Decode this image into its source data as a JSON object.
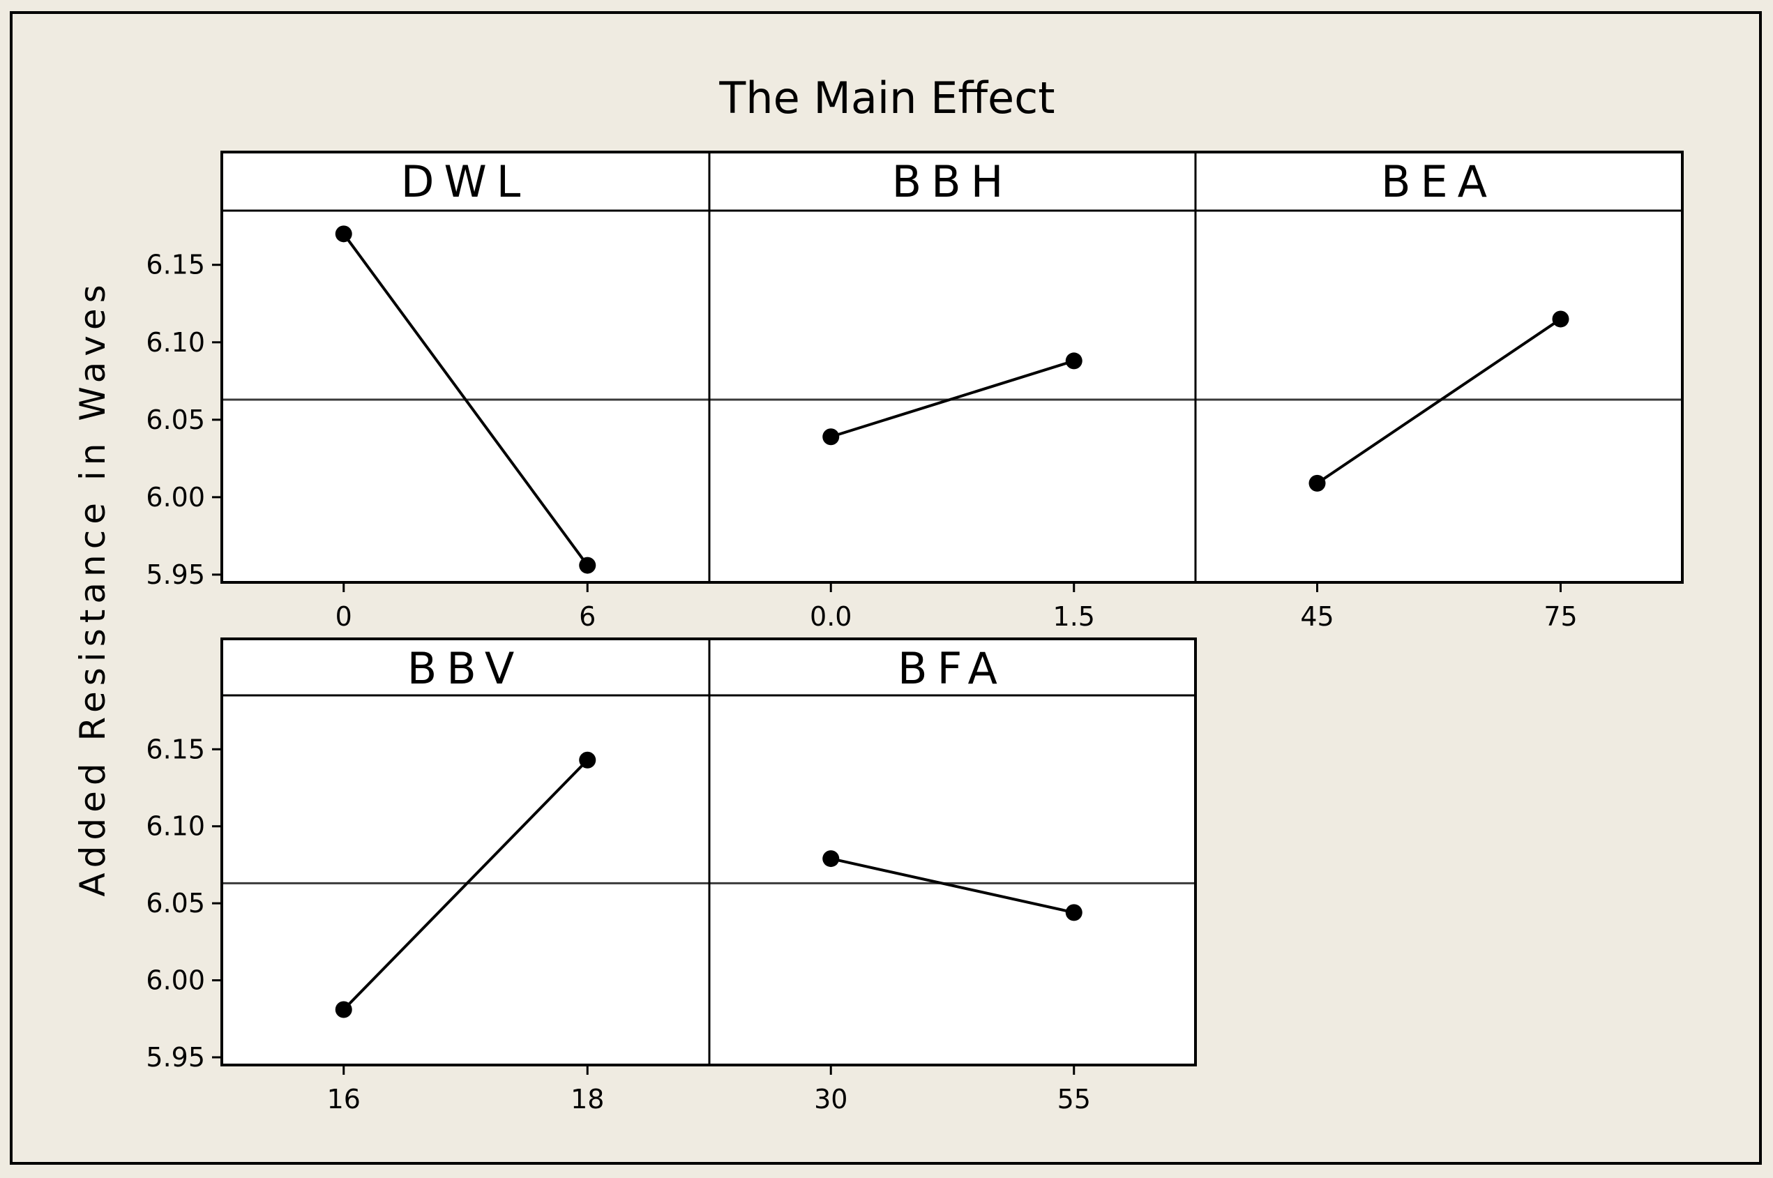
{
  "colors": {
    "outer_background": "#efebe1",
    "panel_background": "#ffffff",
    "line": "#000000",
    "reference_line": "#3a3a3a"
  },
  "chart_data": {
    "type": "line",
    "title": "The Main Effect",
    "ylabel": "Added Resistance in Waves",
    "ylim": [
      5.945,
      6.185
    ],
    "yticks": [
      "5.95",
      "6.00",
      "6.05",
      "6.10",
      "6.15"
    ],
    "reference_mean": 6.063,
    "grid": false,
    "panels": [
      {
        "name": "DWL",
        "levels": [
          "0",
          "6"
        ],
        "values": [
          6.17,
          5.956
        ]
      },
      {
        "name": "BBH",
        "levels": [
          "0.0",
          "1.5"
        ],
        "values": [
          6.039,
          6.088
        ]
      },
      {
        "name": "BEA",
        "levels": [
          "45",
          "75"
        ],
        "values": [
          6.009,
          6.115
        ]
      },
      {
        "name": "BBV",
        "levels": [
          "16",
          "18"
        ],
        "values": [
          5.981,
          6.143
        ]
      },
      {
        "name": "BFA",
        "levels": [
          "30",
          "55"
        ],
        "values": [
          6.079,
          6.044
        ]
      }
    ]
  }
}
